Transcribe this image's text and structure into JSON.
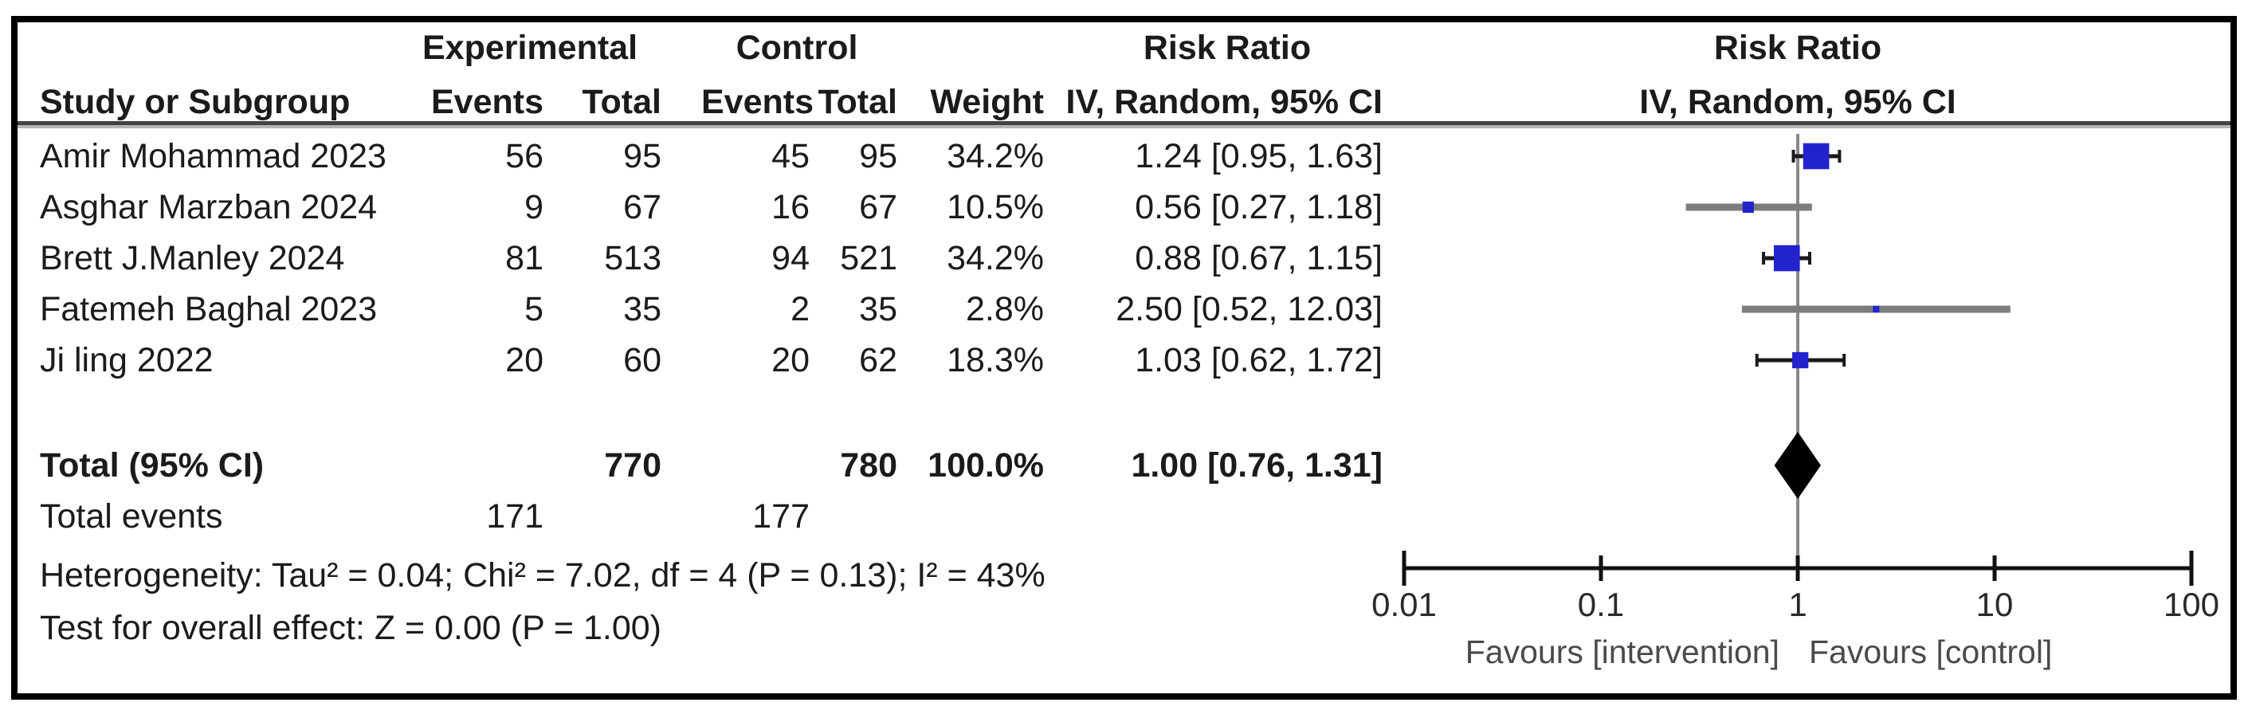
{
  "header": {
    "study": "Study or Subgroup",
    "experimental": "Experimental",
    "control": "Control",
    "risk_ratio_text_col": "Risk Ratio",
    "risk_ratio_plot_col": "Risk Ratio",
    "exp_events": "Events",
    "exp_total": "Total",
    "ctrl_events": "Events",
    "ctrl_total": "Total",
    "weight": "Weight",
    "method_ci": "IV, Random, 95% CI",
    "method_ci_plot": "IV, Random, 95% CI"
  },
  "studies": [
    {
      "name": "Amir Mohammad 2023",
      "exp_events": "56",
      "exp_total": "95",
      "ctrl_events": "45",
      "ctrl_total": "95",
      "weight": "34.2%",
      "rr_ci": "1.24 [0.95, 1.63]"
    },
    {
      "name": "Asghar Marzban 2024",
      "exp_events": "9",
      "exp_total": "67",
      "ctrl_events": "16",
      "ctrl_total": "67",
      "weight": "10.5%",
      "rr_ci": "0.56 [0.27, 1.18]"
    },
    {
      "name": "Brett J.Manley 2024",
      "exp_events": "81",
      "exp_total": "513",
      "ctrl_events": "94",
      "ctrl_total": "521",
      "weight": "34.2%",
      "rr_ci": "0.88 [0.67, 1.15]"
    },
    {
      "name": "Fatemeh Baghal 2023",
      "exp_events": "5",
      "exp_total": "35",
      "ctrl_events": "2",
      "ctrl_total": "35",
      "weight": "2.8%",
      "rr_ci": "2.50 [0.52, 12.03]"
    },
    {
      "name": "Ji ling 2022",
      "exp_events": "20",
      "exp_total": "60",
      "ctrl_events": "20",
      "ctrl_total": "62",
      "weight": "18.3%",
      "rr_ci": "1.03 [0.62, 1.72]"
    }
  ],
  "total_row": {
    "label": "Total (95% CI)",
    "exp_total": "770",
    "ctrl_total": "780",
    "weight": "100.0%",
    "rr_ci": "1.00 [0.76, 1.31]"
  },
  "total_events": {
    "label": "Total events",
    "exp": "171",
    "ctrl": "177"
  },
  "footnotes": {
    "heterogeneity": "Heterogeneity: Tau² = 0.04; Chi² = 7.02, df = 4 (P = 0.13); I² = 43%",
    "overall_effect": "Test for overall effect: Z = 0.00 (P = 1.00)"
  },
  "axis": {
    "tick_labels": [
      "0.01",
      "0.1",
      "1",
      "10",
      "100"
    ],
    "favours_left": "Favours [intervention]",
    "favours_right": "Favours [control]"
  },
  "colors": {
    "square": "#2323cd",
    "diamond": "#000000",
    "ci_line": "#1a1a1a",
    "ci_line_wide": "#7d7d7d",
    "center_line": "#8a8a8a",
    "axis_line": "#111111",
    "tick_label": "#2a2a2a",
    "favours": "#4a4a4a"
  },
  "chart_data": {
    "type": "scatter",
    "variant": "forest-plot",
    "title": "Risk Ratio",
    "method": "IV, Random, 95% CI",
    "x_scale": "log10",
    "xlim": [
      0.01,
      100
    ],
    "x_ticks": [
      0.01,
      0.1,
      1,
      10,
      100
    ],
    "studies": [
      {
        "name": "Amir Mohammad 2023",
        "rr": 1.24,
        "ci_low": 0.95,
        "ci_high": 1.63,
        "weight_pct": 34.2
      },
      {
        "name": "Asghar Marzban 2024",
        "rr": 0.56,
        "ci_low": 0.27,
        "ci_high": 1.18,
        "weight_pct": 10.5
      },
      {
        "name": "Brett J.Manley 2024",
        "rr": 0.88,
        "ci_low": 0.67,
        "ci_high": 1.15,
        "weight_pct": 34.2
      },
      {
        "name": "Fatemeh Baghal 2023",
        "rr": 2.5,
        "ci_low": 0.52,
        "ci_high": 12.03,
        "weight_pct": 2.8
      },
      {
        "name": "Ji ling 2022",
        "rr": 1.03,
        "ci_low": 0.62,
        "ci_high": 1.72,
        "weight_pct": 18.3
      }
    ],
    "total": {
      "label": "Total (95% CI)",
      "rr": 1.0,
      "ci_low": 0.76,
      "ci_high": 1.31,
      "weight_pct": 100.0
    },
    "heterogeneity": {
      "tau2": 0.04,
      "chi2": 7.02,
      "df": 4,
      "p": 0.13,
      "i2_pct": 43
    },
    "overall_effect": {
      "z": 0.0,
      "p": 1.0
    },
    "favours_left": "Favours [intervention]",
    "favours_right": "Favours [control]"
  }
}
